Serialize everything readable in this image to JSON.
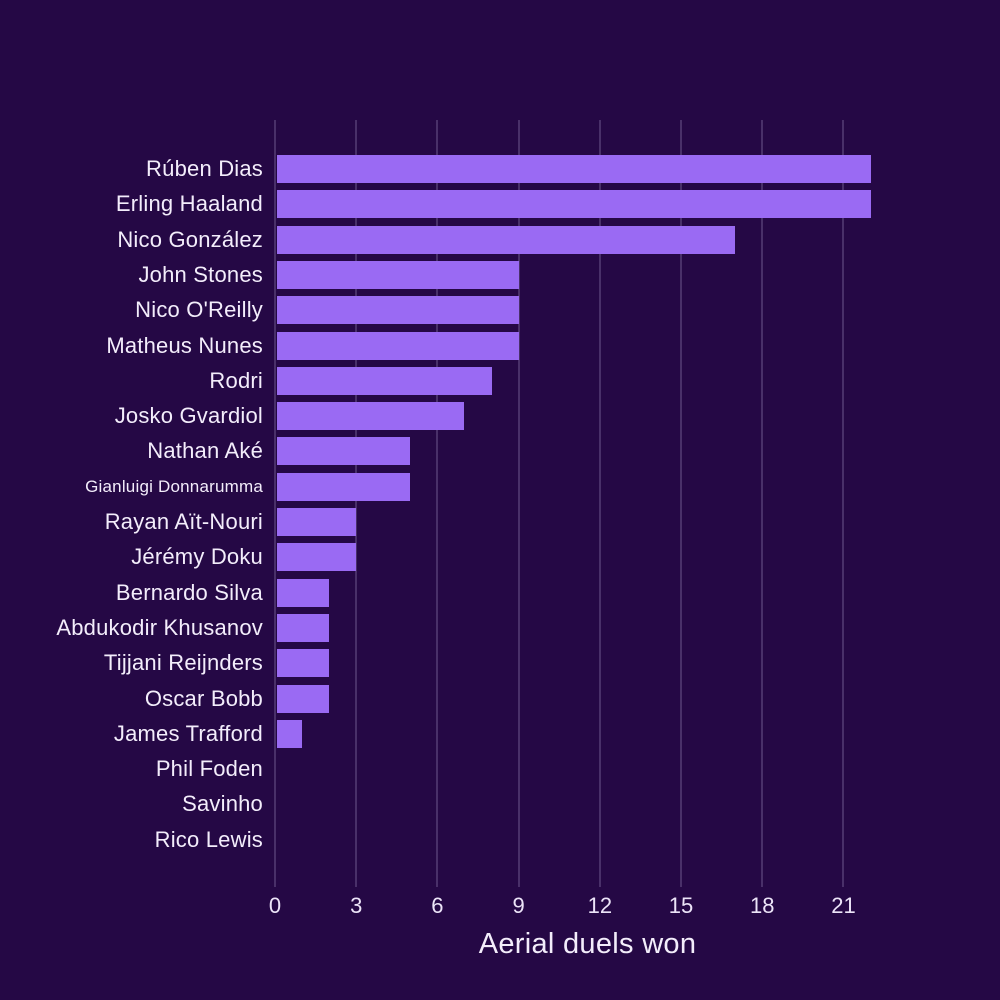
{
  "chart_data": {
    "type": "bar",
    "orientation": "horizontal",
    "title": "",
    "xlabel": "Aerial duels won",
    "ylabel": "",
    "categories": [
      "Rúben Dias",
      "Erling Haaland",
      "Nico González",
      "John Stones",
      "Nico O'Reilly",
      "Matheus Nunes",
      "Rodri",
      "Josko Gvardiol",
      "Nathan Aké",
      "Gianluigi Donnarumma",
      "Rayan Aït-Nouri",
      "Jérémy Doku",
      "Bernardo Silva",
      "Abdukodir Khusanov",
      "Tijjani Reijnders",
      "Oscar Bobb",
      "James Trafford",
      "Phil Foden",
      "Savinho",
      "Rico Lewis"
    ],
    "values": [
      22,
      22,
      17,
      9,
      9,
      9,
      8,
      7,
      5,
      5,
      3,
      3,
      2,
      2,
      2,
      2,
      1,
      0,
      0,
      0
    ],
    "xlim": [
      0,
      23
    ],
    "xticks": [
      0,
      3,
      6,
      9,
      12,
      15,
      18,
      21
    ],
    "grid": "vertical-gridlines-on",
    "legend": "none",
    "colors": {
      "background": "#250845",
      "bar": "#9a6af3",
      "text": "#f3edfb",
      "gridline": "#4b3a68"
    }
  }
}
